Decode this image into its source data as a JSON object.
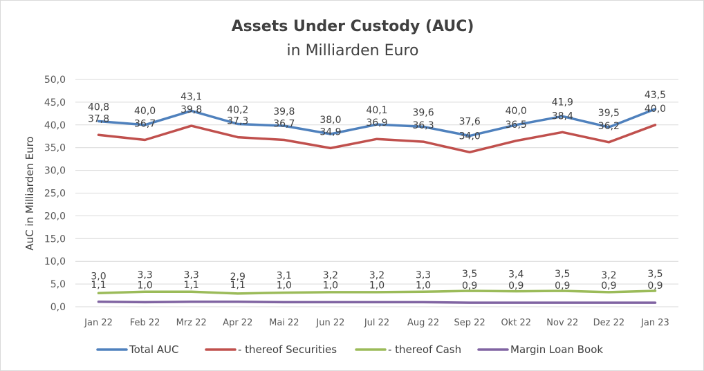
{
  "chart_data": {
    "type": "line",
    "title": "Assets Under Custody (AUC)",
    "subtitle": "in Milliarden Euro",
    "ylabel": "AuC in Milliarden Euro",
    "xlabel": "",
    "ylim": [
      0,
      50
    ],
    "ytick_step": 5,
    "ytick_labels": [
      "0,0",
      "5,0",
      "10,0",
      "15,0",
      "20,0",
      "25,0",
      "30,0",
      "35,0",
      "40,0",
      "45,0",
      "50,0"
    ],
    "grid": true,
    "legend_position": "bottom",
    "categories": [
      "Jan 22",
      "Feb 22",
      "Mrz 22",
      "Apr 22",
      "Mai 22",
      "Jun 22",
      "Jul 22",
      "Aug 22",
      "Sep 22",
      "Okt 22",
      "Nov 22",
      "Dez 22",
      "Jan 23"
    ],
    "series": [
      {
        "name": "Total AUC",
        "color": "#4f81bd",
        "values": [
          40.8,
          40.0,
          43.1,
          40.2,
          39.8,
          38.0,
          40.1,
          39.6,
          37.6,
          40.0,
          41.9,
          39.5,
          43.5
        ],
        "labels": [
          "40,8",
          "40,0",
          "43,1",
          "40,2",
          "39,8",
          "38,0",
          "40,1",
          "39,6",
          "37,6",
          "40,0",
          "41,9",
          "39,5",
          "43,5"
        ]
      },
      {
        "name": "- thereof Securities",
        "color": "#c0504d",
        "values": [
          37.8,
          36.7,
          39.8,
          37.3,
          36.7,
          34.9,
          36.9,
          36.3,
          34.0,
          36.5,
          38.4,
          36.2,
          40.0
        ],
        "labels": [
          "37,8",
          "36,7",
          "39,8",
          "37,3",
          "36,7",
          "34,9",
          "36,9",
          "36,3",
          "34,0",
          "36,5",
          "38,4",
          "36,2",
          "40,0"
        ]
      },
      {
        "name": "- thereof Cash",
        "color": "#9bbb59",
        "values": [
          3.0,
          3.3,
          3.3,
          2.9,
          3.1,
          3.2,
          3.2,
          3.3,
          3.5,
          3.4,
          3.5,
          3.2,
          3.5
        ],
        "labels": [
          "3,0",
          "3,3",
          "3,3",
          "2,9",
          "3,1",
          "3,2",
          "3,2",
          "3,3",
          "3,5",
          "3,4",
          "3,5",
          "3,2",
          "3,5"
        ]
      },
      {
        "name": "Margin Loan Book",
        "color": "#8064a2",
        "values": [
          1.1,
          1.0,
          1.1,
          1.1,
          1.0,
          1.0,
          1.0,
          1.0,
          0.9,
          0.9,
          0.9,
          0.9,
          0.9
        ],
        "labels": [
          "1,1",
          "1,0",
          "1,1",
          "1,1",
          "1,0",
          "1,0",
          "1,0",
          "1,0",
          "0,9",
          "0,9",
          "0,9",
          "0,9",
          "0,9"
        ]
      }
    ]
  }
}
